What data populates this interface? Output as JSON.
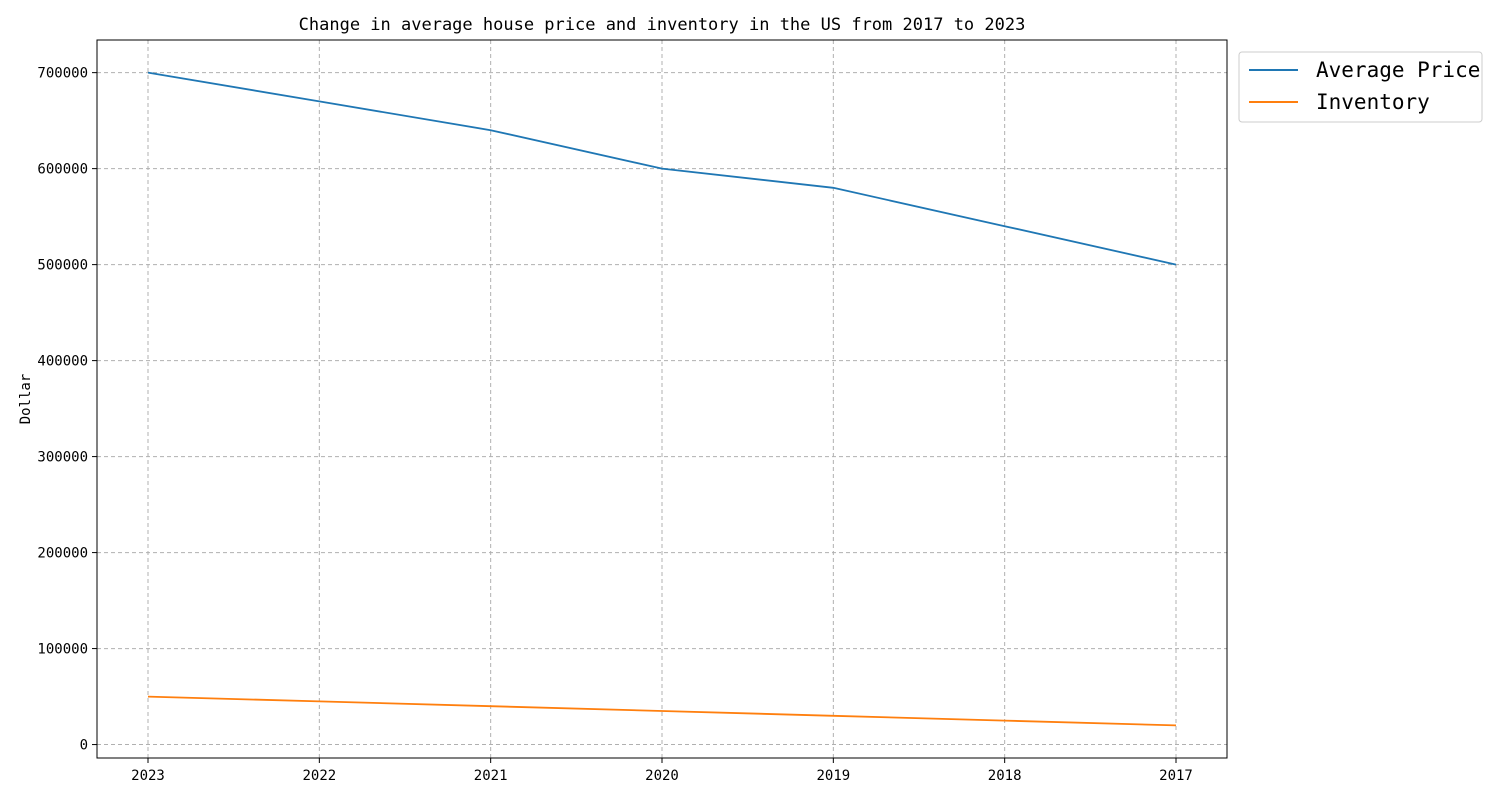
{
  "chart_data": {
    "type": "line",
    "title": "Change in average house price and inventory in the US from 2017 to 2023",
    "xlabel": "",
    "ylabel": "Dollar",
    "categories": [
      "2023",
      "2022",
      "2021",
      "2020",
      "2019",
      "2018",
      "2017"
    ],
    "yticks": [
      "0",
      "100000",
      "200000",
      "300000",
      "400000",
      "500000",
      "600000",
      "700000"
    ],
    "ylim": [
      -14000,
      734000
    ],
    "grid": true,
    "legend_position": "outside-top-right",
    "series": [
      {
        "name": "Average Price",
        "color": "#1f77b4",
        "values": [
          700000,
          670000,
          640000,
          600000,
          580000,
          540000,
          500000
        ]
      },
      {
        "name": "Inventory",
        "color": "#ff7f0e",
        "values": [
          50000,
          45000,
          40000,
          35000,
          30000,
          25000,
          20000
        ]
      }
    ]
  }
}
